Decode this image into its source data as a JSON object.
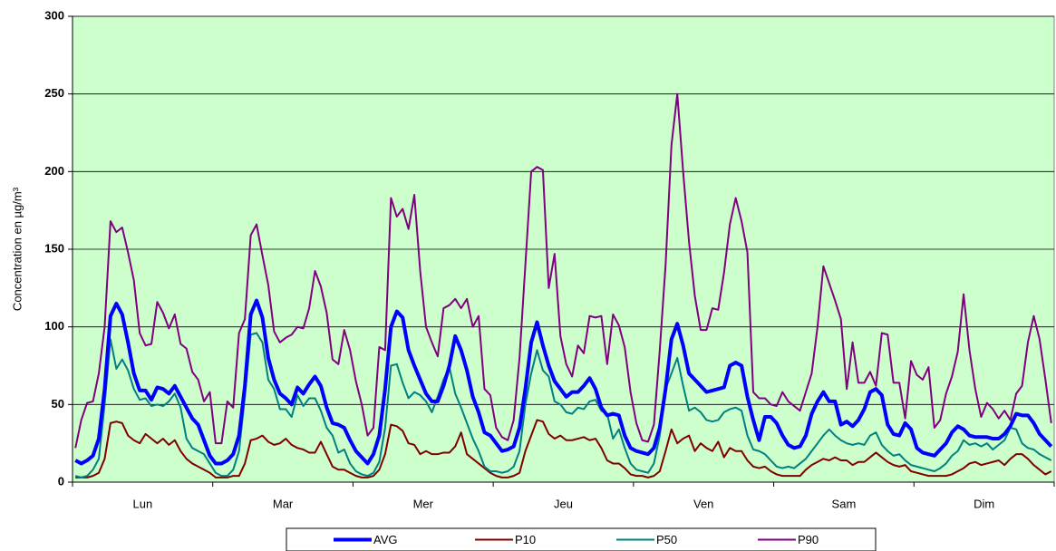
{
  "chart_data": {
    "type": "line",
    "y_label": "Concentration en µg/m³",
    "categories": [
      null,
      null,
      null,
      null,
      null,
      null,
      null,
      null,
      null,
      null,
      null,
      null,
      "Lun",
      null,
      null,
      null,
      null,
      null,
      null,
      null,
      null,
      null,
      null,
      null,
      null,
      null,
      null,
      null,
      null,
      null,
      null,
      null,
      null,
      null,
      null,
      null,
      "Mar",
      null,
      null,
      null,
      null,
      null,
      null,
      null,
      null,
      null,
      null,
      null,
      null,
      null,
      null,
      null,
      null,
      null,
      null,
      null,
      null,
      null,
      null,
      null,
      "Mer",
      null,
      null,
      null,
      null,
      null,
      null,
      null,
      null,
      null,
      null,
      null,
      null,
      null,
      null,
      null,
      null,
      null,
      null,
      null,
      null,
      null,
      null,
      null,
      "Jeu",
      null,
      null,
      null,
      null,
      null,
      null,
      null,
      null,
      null,
      null,
      null,
      null,
      null,
      null,
      null,
      null,
      null,
      null,
      null,
      null,
      null,
      null,
      null,
      "Ven",
      null,
      null,
      null,
      null,
      null,
      null,
      null,
      null,
      null,
      null,
      null,
      null,
      null,
      null,
      null,
      null,
      null,
      null,
      null,
      null,
      null,
      null,
      null,
      "Sam",
      null,
      null,
      null,
      null,
      null,
      null,
      null,
      null,
      null,
      null,
      null,
      null,
      null,
      null,
      null,
      null,
      null,
      null,
      null,
      null,
      null,
      null,
      null,
      "Dim",
      null,
      null,
      null,
      null,
      null,
      null,
      null,
      null,
      null,
      null,
      null
    ],
    "ylim": [
      0,
      300
    ],
    "yticks": [
      0,
      50,
      100,
      150,
      200,
      250,
      300
    ],
    "grid": true,
    "background": "#ccffcc",
    "series": [
      {
        "name": "AVG",
        "color": "#0000ff",
        "width": 4,
        "values": [
          14,
          12,
          14,
          17,
          28,
          60,
          107,
          115,
          108,
          90,
          70,
          59,
          59,
          53,
          61,
          60,
          57,
          62,
          55,
          48,
          41,
          37,
          27,
          17,
          12,
          12,
          14,
          18,
          30,
          62,
          108,
          117,
          106,
          80,
          66,
          57,
          54,
          50,
          61,
          57,
          63,
          68,
          62,
          48,
          38,
          37,
          35,
          27,
          20,
          16,
          12,
          18,
          30,
          60,
          100,
          110,
          106,
          85,
          75,
          66,
          57,
          52,
          52,
          62,
          75,
          94,
          85,
          72,
          55,
          45,
          32,
          30,
          25,
          20,
          21,
          23,
          35,
          60,
          90,
          103,
          88,
          75,
          65,
          60,
          55,
          58,
          58,
          62,
          67,
          60,
          48,
          43,
          44,
          43,
          30,
          22,
          20,
          19,
          18,
          22,
          35,
          60,
          92,
          102,
          88,
          70,
          66,
          62,
          58,
          59,
          60,
          61,
          75,
          77,
          75,
          55,
          40,
          27,
          42,
          42,
          38,
          30,
          24,
          22,
          23,
          30,
          44,
          52,
          58,
          52,
          52,
          37,
          39,
          36,
          40,
          47,
          58,
          60,
          56,
          37,
          31,
          30,
          38,
          34,
          22,
          19,
          18,
          17,
          21,
          25,
          32,
          36,
          34,
          30,
          29,
          29,
          29,
          28,
          28,
          31,
          36,
          44,
          43,
          43,
          38,
          31,
          27,
          23
        ]
      },
      {
        "name": "P10",
        "color": "#800000",
        "width": 2,
        "values": [
          3,
          3,
          3,
          4,
          6,
          15,
          38,
          39,
          38,
          30,
          27,
          25,
          31,
          28,
          25,
          28,
          24,
          27,
          20,
          15,
          12,
          10,
          8,
          6,
          3,
          3,
          3,
          4,
          4,
          12,
          27,
          28,
          30,
          26,
          24,
          25,
          28,
          24,
          22,
          21,
          19,
          19,
          26,
          18,
          10,
          8,
          8,
          6,
          4,
          3,
          3,
          4,
          8,
          18,
          37,
          36,
          33,
          25,
          24,
          18,
          20,
          18,
          18,
          19,
          19,
          23,
          32,
          18,
          15,
          12,
          9,
          6,
          4,
          3,
          3,
          4,
          6,
          20,
          30,
          40,
          39,
          31,
          28,
          30,
          27,
          27,
          28,
          29,
          27,
          28,
          22,
          14,
          12,
          12,
          9,
          5,
          4,
          4,
          3,
          4,
          7,
          20,
          34,
          25,
          28,
          30,
          20,
          25,
          22,
          20,
          26,
          16,
          22,
          20,
          20,
          14,
          10,
          9,
          10,
          7,
          5,
          4,
          4,
          4,
          4,
          8,
          11,
          13,
          15,
          14,
          16,
          14,
          14,
          11,
          13,
          13,
          16,
          19,
          16,
          13,
          11,
          10,
          11,
          7,
          6,
          5,
          4,
          4,
          4,
          4,
          5,
          7,
          9,
          12,
          13,
          11,
          12,
          13,
          14,
          11,
          15,
          18,
          18,
          15,
          11,
          8,
          5,
          7
        ]
      },
      {
        "name": "P50",
        "color": "#008080",
        "width": 2,
        "values": [
          4,
          3,
          4,
          8,
          15,
          50,
          92,
          73,
          79,
          72,
          60,
          53,
          54,
          49,
          50,
          49,
          52,
          57,
          48,
          28,
          22,
          20,
          18,
          12,
          6,
          4,
          4,
          8,
          20,
          55,
          95,
          96,
          90,
          66,
          60,
          47,
          47,
          42,
          56,
          49,
          54,
          54,
          46,
          35,
          30,
          19,
          21,
          12,
          7,
          5,
          4,
          6,
          13,
          35,
          75,
          76,
          64,
          54,
          58,
          56,
          52,
          45,
          55,
          66,
          74,
          57,
          48,
          38,
          28,
          20,
          10,
          7,
          7,
          6,
          7,
          10,
          20,
          50,
          70,
          85,
          72,
          68,
          52,
          50,
          45,
          44,
          48,
          47,
          52,
          53,
          46,
          44,
          28,
          34,
          22,
          12,
          8,
          7,
          6,
          12,
          30,
          60,
          70,
          80,
          62,
          46,
          48,
          45,
          40,
          39,
          40,
          45,
          47,
          48,
          46,
          30,
          21,
          20,
          18,
          14,
          10,
          9,
          10,
          9,
          12,
          15,
          20,
          25,
          30,
          34,
          30,
          27,
          25,
          24,
          25,
          24,
          30,
          32,
          24,
          20,
          17,
          18,
          14,
          11,
          10,
          9,
          8,
          7,
          9,
          12,
          17,
          20,
          27,
          24,
          25,
          23,
          25,
          21,
          24,
          27,
          35,
          34,
          25,
          22,
          21,
          18,
          16,
          14
        ]
      },
      {
        "name": "P90",
        "color": "#800080",
        "width": 2,
        "values": [
          22,
          40,
          51,
          52,
          70,
          100,
          168,
          161,
          164,
          148,
          130,
          96,
          88,
          89,
          116,
          109,
          99,
          108,
          89,
          86,
          71,
          66,
          52,
          58,
          25,
          25,
          52,
          48,
          96,
          105,
          159,
          166,
          146,
          127,
          97,
          90,
          93,
          95,
          100,
          99,
          112,
          136,
          126,
          109,
          79,
          76,
          98,
          85,
          65,
          50,
          30,
          35,
          87,
          85,
          183,
          171,
          176,
          163,
          185,
          136,
          100,
          90,
          81,
          112,
          114,
          118,
          112,
          118,
          100,
          107,
          60,
          56,
          35,
          29,
          27,
          40,
          80,
          140,
          200,
          203,
          201,
          125,
          147,
          94,
          76,
          68,
          88,
          83,
          107,
          106,
          107,
          76,
          108,
          101,
          87,
          58,
          38,
          27,
          26,
          37,
          85,
          140,
          217,
          250,
          200,
          155,
          120,
          98,
          98,
          112,
          111,
          135,
          166,
          183,
          168,
          148,
          58,
          54,
          54,
          50,
          49,
          58,
          52,
          49,
          46,
          58,
          70,
          100,
          139,
          128,
          117,
          105,
          60,
          90,
          64,
          64,
          71,
          62,
          96,
          95,
          64,
          64,
          41,
          78,
          69,
          66,
          74,
          35,
          40,
          57,
          68,
          84,
          121,
          85,
          60,
          42,
          51,
          47,
          41,
          46,
          40,
          57,
          62,
          90,
          107,
          92,
          66,
          38
        ]
      }
    ]
  }
}
